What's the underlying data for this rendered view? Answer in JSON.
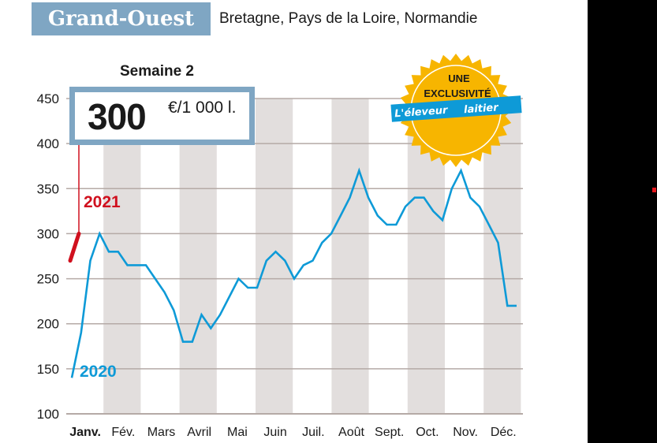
{
  "header": {
    "region": "Grand-Ouest",
    "subregions": "Bretagne, Pays de la Loire, Normandie"
  },
  "highlight": {
    "week_label": "Semaine 2",
    "value": "300",
    "unit": "€/1 000 l."
  },
  "badge": {
    "line1": "UNE",
    "line2": "EXCLUSIVITÉ",
    "brand_part1": "L'éleveur",
    "brand_part2": "laitier",
    "colors": {
      "sun": "#f7b500",
      "brand_bg": "#0e9ad7"
    }
  },
  "colors": {
    "header_bg": "#7fa6c3",
    "series_2020": "#0e9ad7",
    "series_2021": "#d0101e",
    "band": "#e2dedd",
    "grid": "#b5aaa6"
  },
  "chart_data": {
    "type": "line",
    "title": "Grand-Ouest",
    "subtitle": "Bretagne, Pays de la Loire, Normandie",
    "xlabel": "",
    "ylabel": "€/1 000 l.",
    "ylim": [
      100,
      450
    ],
    "yticks": [
      100,
      150,
      200,
      250,
      300,
      350,
      400,
      450
    ],
    "grid": true,
    "categories": [
      "Janv.",
      "Fév.",
      "Mars",
      "Avril",
      "Mai",
      "Juin",
      "Juil.",
      "Août",
      "Sept.",
      "Oct.",
      "Nov.",
      "Déc."
    ],
    "annotation": "Semaine 2 : 300 €/1 000 l.",
    "series": [
      {
        "name": "2020",
        "weekly_values": [
          140,
          190,
          270,
          300,
          280,
          280,
          265,
          265,
          265,
          250,
          235,
          215,
          180,
          180,
          210,
          195,
          210,
          230,
          250,
          240,
          240,
          270,
          280,
          270,
          250,
          265,
          270,
          290,
          300,
          320,
          340,
          370,
          340,
          320,
          310,
          310,
          330,
          340,
          340,
          325,
          315,
          350,
          370,
          340,
          330,
          310,
          290,
          220,
          220
        ]
      },
      {
        "name": "2021",
        "weekly_values": [
          270,
          300
        ]
      }
    ]
  }
}
